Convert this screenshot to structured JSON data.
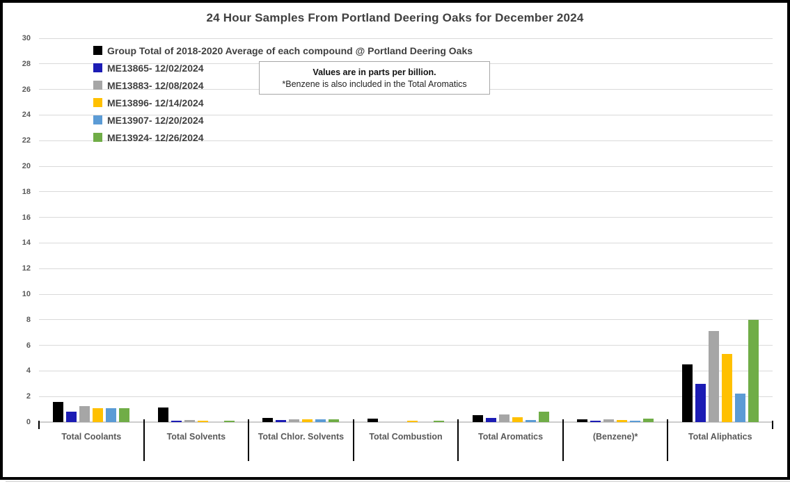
{
  "chart_data": {
    "type": "bar",
    "title": "24 Hour Samples From Portland Deering Oaks for December 2024",
    "categories": [
      "Total Coolants",
      "Total Solvents",
      "Total Chlor. Solvents",
      "Total Combustion",
      "Total Aromatics",
      "(Benzene)*",
      "Total Aliphatics"
    ],
    "series": [
      {
        "name": "Group Total of 2018-2020 Average of each compound @ Portland Deering Oaks",
        "color": "#000000",
        "values": [
          1.55,
          1.15,
          0.35,
          0.25,
          0.55,
          0.2,
          4.5
        ]
      },
      {
        "name": "ME13865- 12/02/2024",
        "color": "#1c1cb4",
        "values": [
          0.8,
          0.1,
          0.15,
          0,
          0.3,
          0.1,
          3.0
        ]
      },
      {
        "name": "ME13883- 12/08/2024",
        "color": "#a6a6a6",
        "values": [
          1.25,
          0.15,
          0.2,
          0,
          0.6,
          0.2,
          7.1
        ]
      },
      {
        "name": "ME13896- 12/14/2024",
        "color": "#ffc000",
        "values": [
          1.1,
          0.1,
          0.2,
          0.1,
          0.4,
          0.15,
          5.35
        ]
      },
      {
        "name": "ME13907- 12/20/2024",
        "color": "#5b9bd5",
        "values": [
          1.1,
          0,
          0.2,
          0,
          0.15,
          0.1,
          2.25
        ]
      },
      {
        "name": "ME13924- 12/26/2024",
        "color": "#70ad47",
        "values": [
          1.1,
          0.1,
          0.2,
          0.1,
          0.8,
          0.25,
          8.0
        ]
      }
    ],
    "ylim": [
      0,
      30
    ],
    "ytick_step": 2,
    "yticks": [
      0,
      2,
      4,
      6,
      8,
      10,
      12,
      14,
      16,
      18,
      20,
      22,
      24,
      26,
      28,
      30
    ],
    "grid": true,
    "legend_position": "inside-top-left",
    "xlabel": "",
    "ylabel": "",
    "annotation_box": {
      "line1": "Values are in parts per billion.",
      "line2": "*Benzene is also included in the Total Aromatics"
    },
    "units": "parts per billion"
  },
  "colors": {
    "frame_border": "#000000",
    "gridline": "#d9d9d9",
    "axis_line": "#cdcdcd",
    "title_text": "#404040",
    "axis_text": "#595959",
    "legend_text": "#404040"
  }
}
